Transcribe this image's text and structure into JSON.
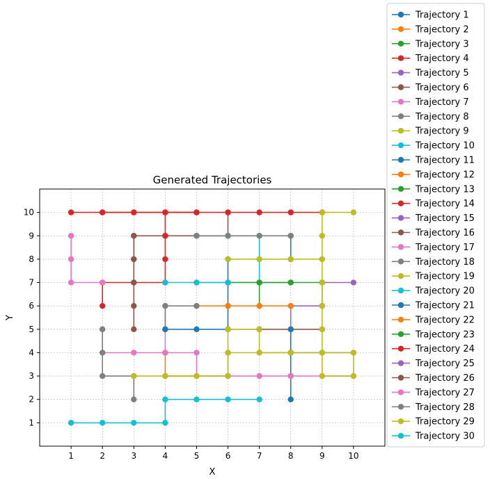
{
  "chart_data": {
    "type": "line",
    "title": "Generated Trajectories",
    "xlabel": "X",
    "ylabel": "Y",
    "xlim": [
      0,
      11
    ],
    "ylim": [
      0,
      11
    ],
    "xticks": [
      1,
      2,
      3,
      4,
      5,
      6,
      7,
      8,
      9,
      10
    ],
    "yticks": [
      1,
      2,
      3,
      4,
      5,
      6,
      7,
      8,
      9,
      10
    ],
    "grid": true,
    "legend_position": "right, outside the plot",
    "colors": [
      "#1f77b4",
      "#ff7f0e",
      "#2ca02c",
      "#d62728",
      "#9467bd",
      "#8c564b",
      "#e377c2",
      "#7f7f7f",
      "#bcbd22",
      "#17becf"
    ],
    "series": [
      {
        "name": "Trajectory 1",
        "points": [
          [
            8,
            9
          ],
          [
            8,
            8
          ]
        ]
      },
      {
        "name": "Trajectory 2",
        "points": [
          [
            5,
            6
          ],
          [
            6,
            6
          ]
        ]
      },
      {
        "name": "Trajectory 3",
        "points": [
          [
            7,
            6
          ],
          [
            7,
            7
          ],
          [
            8,
            7
          ]
        ]
      },
      {
        "name": "Trajectory 4",
        "points": [
          [
            2,
            10
          ],
          [
            3,
            10
          ],
          [
            4,
            10
          ],
          [
            5,
            10
          ]
        ]
      },
      {
        "name": "Trajectory 5",
        "points": [
          [
            8,
            4
          ],
          [
            8,
            5
          ],
          [
            8,
            6
          ],
          [
            9,
            6
          ],
          [
            9,
            7
          ],
          [
            10,
            7
          ]
        ]
      },
      {
        "name": "Trajectory 6",
        "points": [
          [
            3,
            8
          ],
          [
            3,
            9
          ],
          [
            4,
            9
          ],
          [
            5,
            9
          ],
          [
            6,
            9
          ],
          [
            6,
            10
          ]
        ]
      },
      {
        "name": "Trajectory 7",
        "points": [
          [
            4,
            4
          ],
          [
            4,
            5
          ],
          [
            4,
            6
          ]
        ]
      },
      {
        "name": "Trajectory 8",
        "points": [
          [
            4,
            5
          ],
          [
            4,
            6
          ],
          [
            5,
            6
          ]
        ]
      },
      {
        "name": "Trajectory 9",
        "points": [
          [
            4,
            3
          ],
          [
            5,
            3
          ],
          [
            6,
            3
          ],
          [
            6,
            4
          ],
          [
            7,
            4
          ],
          [
            8,
            4
          ],
          [
            8,
            3
          ]
        ]
      },
      {
        "name": "Trajectory 10",
        "points": [
          [
            5,
            9
          ],
          [
            6,
            9
          ],
          [
            7,
            9
          ],
          [
            7,
            8
          ],
          [
            7,
            7
          ],
          [
            6,
            7
          ],
          [
            5,
            7
          ]
        ]
      },
      {
        "name": "Trajectory 11",
        "points": [
          [
            4,
            5
          ],
          [
            5,
            5
          ],
          [
            6,
            5
          ],
          [
            6,
            6
          ],
          [
            6,
            7
          ],
          [
            6,
            8
          ]
        ]
      },
      {
        "name": "Trajectory 12",
        "points": [
          [
            4,
            4
          ],
          [
            4,
            3
          ],
          [
            5,
            3
          ]
        ]
      },
      {
        "name": "Trajectory 13",
        "points": [
          [
            6,
            7
          ],
          [
            7,
            7
          ]
        ]
      },
      {
        "name": "Trajectory 14",
        "points": [
          [
            2,
            6
          ],
          [
            2,
            7
          ],
          [
            3,
            7
          ],
          [
            4,
            7
          ],
          [
            4,
            8
          ],
          [
            4,
            9
          ],
          [
            4,
            10
          ],
          [
            5,
            10
          ]
        ]
      },
      {
        "name": "Trajectory 15",
        "points": [
          [
            9,
            6
          ],
          [
            9,
            7
          ]
        ]
      },
      {
        "name": "Trajectory 16",
        "points": [
          [
            6,
            5
          ],
          [
            7,
            5
          ],
          [
            8,
            5
          ],
          [
            9,
            5
          ]
        ]
      },
      {
        "name": "Trajectory 17",
        "points": [
          [
            1,
            9
          ],
          [
            1,
            8
          ],
          [
            1,
            7
          ],
          [
            2,
            7
          ]
        ]
      },
      {
        "name": "Trajectory 18",
        "points": [
          [
            5,
            9
          ],
          [
            6,
            9
          ],
          [
            7,
            9
          ],
          [
            8,
            9
          ]
        ]
      },
      {
        "name": "Trajectory 19",
        "points": [
          [
            6,
            8
          ],
          [
            7,
            8
          ],
          [
            8,
            8
          ],
          [
            9,
            8
          ]
        ]
      },
      {
        "name": "Trajectory 20",
        "points": [
          [
            4,
            7
          ],
          [
            5,
            7
          ],
          [
            6,
            7
          ]
        ]
      },
      {
        "name": "Trajectory 21",
        "points": [
          [
            8,
            2
          ],
          [
            8,
            3
          ],
          [
            8,
            4
          ],
          [
            8,
            5
          ]
        ]
      },
      {
        "name": "Trajectory 22",
        "points": [
          [
            6,
            6
          ],
          [
            7,
            6
          ],
          [
            8,
            6
          ]
        ]
      },
      {
        "name": "Trajectory 23",
        "points": [
          [
            7,
            7
          ],
          [
            8,
            7
          ],
          [
            9,
            7
          ]
        ]
      },
      {
        "name": "Trajectory 24",
        "points": [
          [
            1,
            10
          ],
          [
            2,
            10
          ],
          [
            3,
            10
          ],
          [
            4,
            10
          ],
          [
            5,
            10
          ],
          [
            6,
            10
          ],
          [
            7,
            10
          ],
          [
            8,
            10
          ],
          [
            9,
            10
          ]
        ]
      },
      {
        "name": "Trajectory 25",
        "points": [
          [
            8,
            4
          ],
          [
            9,
            4
          ],
          [
            10,
            4
          ]
        ]
      },
      {
        "name": "Trajectory 26",
        "points": [
          [
            3,
            5
          ],
          [
            3,
            6
          ],
          [
            3,
            7
          ],
          [
            3,
            8
          ],
          [
            3,
            9
          ]
        ]
      },
      {
        "name": "Trajectory 27",
        "points": [
          [
            2,
            5
          ],
          [
            2,
            4
          ],
          [
            3,
            4
          ],
          [
            4,
            4
          ],
          [
            5,
            4
          ],
          [
            5,
            3
          ],
          [
            6,
            3
          ],
          [
            7,
            3
          ],
          [
            8,
            3
          ],
          [
            9,
            3
          ],
          [
            10,
            3
          ]
        ]
      },
      {
        "name": "Trajectory 28",
        "points": [
          [
            2,
            5
          ],
          [
            2,
            4
          ],
          [
            2,
            3
          ],
          [
            3,
            3
          ],
          [
            3,
            2
          ]
        ]
      },
      {
        "name": "Trajectory 29",
        "points": [
          [
            3,
            3
          ],
          [
            4,
            3
          ],
          [
            5,
            3
          ],
          [
            6,
            3
          ],
          [
            6,
            4
          ],
          [
            6,
            5
          ],
          [
            7,
            5
          ],
          [
            7,
            4
          ],
          [
            8,
            4
          ],
          [
            9,
            4
          ],
          [
            10,
            4
          ],
          [
            10,
            3
          ],
          [
            9,
            3
          ],
          [
            9,
            4
          ],
          [
            9,
            5
          ],
          [
            9,
            6
          ],
          [
            9,
            7
          ],
          [
            9,
            8
          ],
          [
            9,
            9
          ],
          [
            9,
            10
          ],
          [
            10,
            10
          ]
        ]
      },
      {
        "name": "Trajectory 30",
        "points": [
          [
            1,
            1
          ],
          [
            2,
            1
          ],
          [
            3,
            1
          ],
          [
            4,
            1
          ],
          [
            4,
            2
          ],
          [
            5,
            2
          ],
          [
            6,
            2
          ],
          [
            7,
            2
          ]
        ]
      }
    ]
  }
}
